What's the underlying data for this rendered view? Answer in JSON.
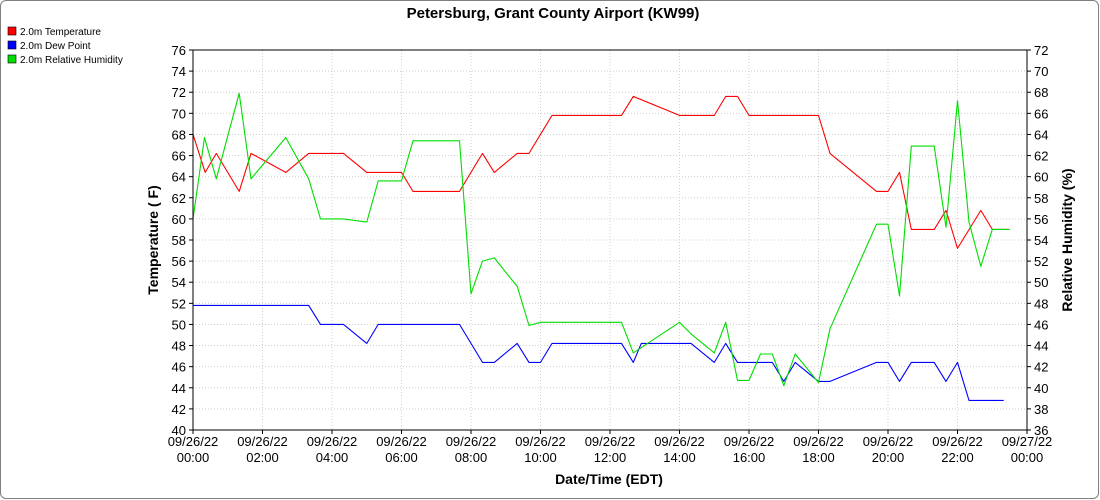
{
  "chart_data": {
    "type": "line",
    "title": "Petersburg, Grant County Airport (KW99)",
    "xlabel": "Date/Time (EDT)",
    "ylabel": "Temperature ( F)",
    "y2label": "Relative Humidity (%)",
    "x_ticks": [
      [
        "09/26/22",
        "00:00"
      ],
      [
        "09/26/22",
        "02:00"
      ],
      [
        "09/26/22",
        "04:00"
      ],
      [
        "09/26/22",
        "06:00"
      ],
      [
        "09/26/22",
        "08:00"
      ],
      [
        "09/26/22",
        "10:00"
      ],
      [
        "09/26/22",
        "12:00"
      ],
      [
        "09/26/22",
        "14:00"
      ],
      [
        "09/26/22",
        "16:00"
      ],
      [
        "09/26/22",
        "18:00"
      ],
      [
        "09/26/22",
        "20:00"
      ],
      [
        "09/26/22",
        "22:00"
      ],
      [
        "09/27/22",
        "00:00"
      ]
    ],
    "xlim": [
      0,
      24
    ],
    "ylim": [
      40,
      76
    ],
    "y_ticks": [
      40,
      42,
      44,
      46,
      48,
      50,
      52,
      54,
      56,
      58,
      60,
      62,
      64,
      66,
      68,
      70,
      72,
      74,
      76
    ],
    "y2lim": [
      36,
      72
    ],
    "y2_ticks": [
      36,
      38,
      40,
      42,
      44,
      46,
      48,
      50,
      52,
      54,
      56,
      58,
      60,
      62,
      64,
      66,
      68,
      70,
      72
    ],
    "legend_position": "top-left",
    "grid": true,
    "series": [
      {
        "name": "2.0m Temperature",
        "color": "#ff0000",
        "axis": "left",
        "x": [
          0,
          0.35,
          0.67,
          1.33,
          1.67,
          2.67,
          3.33,
          4.33,
          5.0,
          6.0,
          6.33,
          7.67,
          8.33,
          8.67,
          9.33,
          9.67,
          10.33,
          12.33,
          12.67,
          14.0,
          14.33,
          15.0,
          15.33,
          15.67,
          16.0,
          18.0,
          18.33,
          19.67,
          20.0,
          20.33,
          20.67,
          21.33,
          21.67,
          22.0,
          22.67,
          23.0,
          23.5
        ],
        "y": [
          68.0,
          64.4,
          66.2,
          62.6,
          66.2,
          64.4,
          66.2,
          66.2,
          64.4,
          64.4,
          62.6,
          62.6,
          66.2,
          64.4,
          66.2,
          66.2,
          69.8,
          69.8,
          71.6,
          69.8,
          69.8,
          69.8,
          71.6,
          71.6,
          69.8,
          69.8,
          66.2,
          62.6,
          62.6,
          64.4,
          59.0,
          59.0,
          60.8,
          57.2,
          60.8,
          59.0,
          59.0
        ]
      },
      {
        "name": "2.0m Dew Point",
        "color": "#0000ff",
        "axis": "left",
        "x": [
          0,
          3.33,
          3.67,
          4.33,
          5.0,
          5.33,
          7.67,
          8.33,
          8.67,
          9.33,
          9.67,
          10.0,
          10.33,
          12.33,
          12.67,
          12.9,
          14.0,
          14.33,
          15.0,
          15.33,
          15.67,
          16.0,
          16.33,
          16.67,
          17.0,
          17.33,
          18.0,
          18.33,
          19.67,
          20.0,
          20.33,
          20.67,
          21.33,
          21.67,
          22.0,
          22.33,
          23.33
        ],
        "y": [
          51.8,
          51.8,
          50.0,
          50.0,
          48.2,
          50.0,
          50.0,
          46.4,
          46.4,
          48.2,
          46.4,
          46.4,
          48.2,
          48.2,
          46.4,
          48.2,
          48.2,
          48.2,
          46.4,
          48.2,
          46.4,
          46.4,
          46.4,
          46.4,
          44.6,
          46.4,
          44.6,
          44.6,
          46.4,
          46.4,
          44.6,
          46.4,
          46.4,
          44.6,
          46.4,
          42.8,
          42.8
        ]
      },
      {
        "name": "2.0m Relative Humidity",
        "color": "#00dd00",
        "axis": "right",
        "x": [
          0,
          0.33,
          0.67,
          1.33,
          1.67,
          2.67,
          3.33,
          3.67,
          4.33,
          5.0,
          5.33,
          6.0,
          6.33,
          7.67,
          8.0,
          8.33,
          8.67,
          9.33,
          9.67,
          10.0,
          10.33,
          12.33,
          12.67,
          14.0,
          14.33,
          15.0,
          15.33,
          15.67,
          16.0,
          16.33,
          16.67,
          17.0,
          17.33,
          18.0,
          18.33,
          19.67,
          20.0,
          20.33,
          20.67,
          21.33,
          21.67,
          22.0,
          22.33,
          22.67,
          23.0,
          23.5
        ],
        "y": [
          56,
          63.7,
          59.8,
          67.9,
          59.8,
          63.7,
          59.8,
          56,
          56,
          55.7,
          59.6,
          59.6,
          63.4,
          63.4,
          48.9,
          52,
          52.3,
          49.6,
          45.9,
          46.2,
          46.2,
          46.2,
          43.3,
          46.2,
          45.1,
          43.3,
          46.2,
          40.7,
          40.7,
          43.2,
          43.2,
          40.2,
          43.2,
          40.5,
          45.6,
          55.5,
          55.5,
          48.7,
          62.9,
          62.9,
          55.2,
          67.2,
          55.7,
          51.5,
          55.0,
          55.0
        ]
      }
    ]
  }
}
